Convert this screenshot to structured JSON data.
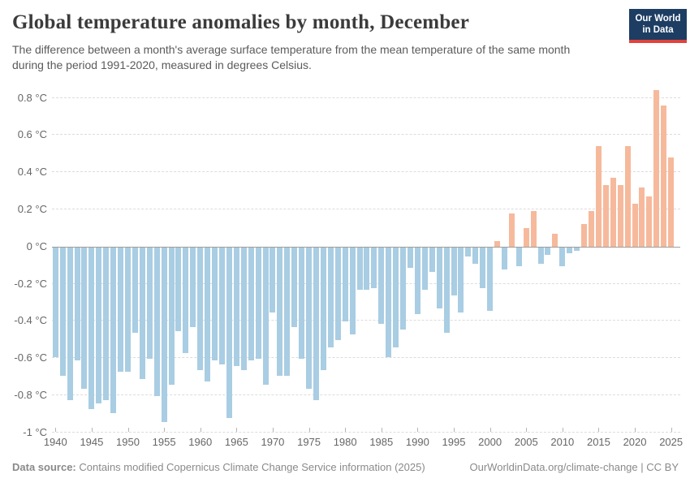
{
  "header": {
    "title": "Global temperature anomalies by month, December",
    "subtitle_line1": "The difference between a month's average surface temperature from the mean temperature of the same month",
    "subtitle_line2": "during the period 1991-2020, measured in degrees Celsius.",
    "logo": {
      "line1": "Our World",
      "line2": "in Data",
      "bg_color": "#1d3d63",
      "accent_color": "#e2423c"
    }
  },
  "chart_data": {
    "type": "bar",
    "title": "Global temperature anomalies by month, December",
    "unit": "°C",
    "grid": "dashed",
    "legend": "none",
    "ylim": [
      -1,
      0.9
    ],
    "colors": {
      "positive": "#f6b99c",
      "negative": "#a9cde3"
    },
    "y_ticks": [
      {
        "label": "0.8 °C",
        "value": 0.8
      },
      {
        "label": "0.6 °C",
        "value": 0.6
      },
      {
        "label": "0.4 °C",
        "value": 0.4
      },
      {
        "label": "0.2 °C",
        "value": 0.2
      },
      {
        "label": "0 °C",
        "value": 0
      },
      {
        "label": "-0.2 °C",
        "value": -0.2
      },
      {
        "label": "-0.4 °C",
        "value": -0.4
      },
      {
        "label": "-0.6 °C",
        "value": -0.6
      },
      {
        "label": "-0.8 °C",
        "value": -0.8
      },
      {
        "label": "-1 °C",
        "value": -1
      }
    ],
    "x_tick_years": [
      1940,
      1945,
      1950,
      1955,
      1960,
      1965,
      1970,
      1975,
      1980,
      1985,
      1990,
      1995,
      2000,
      2005,
      2010,
      2015,
      2020,
      2025
    ],
    "x": [
      1940,
      1941,
      1942,
      1943,
      1944,
      1945,
      1946,
      1947,
      1948,
      1949,
      1950,
      1951,
      1952,
      1953,
      1954,
      1955,
      1956,
      1957,
      1958,
      1959,
      1960,
      1961,
      1962,
      1963,
      1964,
      1965,
      1966,
      1967,
      1968,
      1969,
      1970,
      1971,
      1972,
      1973,
      1974,
      1975,
      1976,
      1977,
      1978,
      1979,
      1980,
      1981,
      1982,
      1983,
      1984,
      1985,
      1986,
      1987,
      1988,
      1989,
      1990,
      1991,
      1992,
      1993,
      1994,
      1995,
      1996,
      1997,
      1998,
      1999,
      2000,
      2001,
      2002,
      2003,
      2004,
      2005,
      2006,
      2007,
      2008,
      2009,
      2010,
      2011,
      2012,
      2013,
      2014,
      2015,
      2016,
      2017,
      2018,
      2019,
      2020,
      2021,
      2022,
      2023,
      2024,
      2025
    ],
    "values": [
      -0.59,
      -0.69,
      -0.82,
      -0.61,
      -0.76,
      -0.87,
      -0.84,
      -0.82,
      -0.89,
      -0.67,
      -0.67,
      -0.46,
      -0.71,
      -0.6,
      -0.8,
      -0.94,
      -0.74,
      -0.45,
      -0.57,
      -0.43,
      -0.66,
      -0.72,
      -0.61,
      -0.63,
      -0.92,
      -0.64,
      -0.66,
      -0.61,
      -0.6,
      -0.74,
      -0.35,
      -0.69,
      -0.69,
      -0.43,
      -0.6,
      -0.76,
      -0.82,
      -0.66,
      -0.54,
      -0.5,
      -0.4,
      -0.47,
      -0.23,
      -0.23,
      -0.22,
      -0.41,
      -0.59,
      -0.54,
      -0.44,
      -0.11,
      -0.36,
      -0.23,
      -0.13,
      -0.33,
      -0.46,
      -0.26,
      -0.35,
      -0.05,
      -0.09,
      -0.22,
      -0.34,
      0.03,
      -0.12,
      0.18,
      -0.1,
      0.1,
      0.19,
      -0.09,
      -0.04,
      0.07,
      -0.1,
      -0.03,
      -0.02,
      0.12,
      0.19,
      0.54,
      0.33,
      0.37,
      0.33,
      0.54,
      0.23,
      0.32,
      0.27,
      0.84,
      0.76,
      0.48
    ]
  },
  "footer": {
    "source_label": "Data source:",
    "source_text": " Contains modified Copernicus Climate Change Service information (2025)",
    "link_text": "OurWorldinData.org/climate-change",
    "separator": " | ",
    "license_text": "CC BY"
  }
}
